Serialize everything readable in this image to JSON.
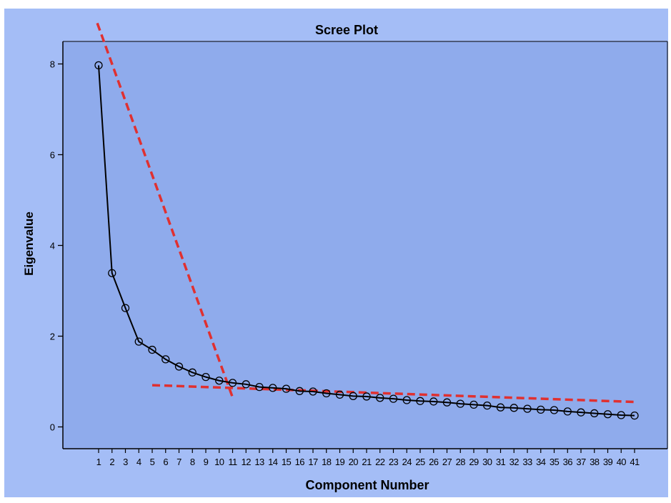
{
  "chart_data": {
    "type": "line",
    "title": "Scree Plot",
    "xlabel": "Component Number",
    "ylabel": "Eigenvalue",
    "x": [
      1,
      2,
      3,
      4,
      5,
      6,
      7,
      8,
      9,
      10,
      11,
      12,
      13,
      14,
      15,
      16,
      17,
      18,
      19,
      20,
      21,
      22,
      23,
      24,
      25,
      26,
      27,
      28,
      29,
      30,
      31,
      32,
      33,
      34,
      35,
      36,
      37,
      38,
      39,
      40,
      41
    ],
    "x_tick_labels": [
      "1",
      "2",
      "3",
      "4",
      "5",
      "6",
      "7",
      "8",
      "9",
      "10",
      "11",
      "12",
      "13",
      "14",
      "15",
      "16",
      "17",
      "18",
      "19",
      "20",
      "21",
      "22",
      "23",
      "24",
      "25",
      "26",
      "27",
      "28",
      "29",
      "30",
      "31",
      "32",
      "33",
      "34",
      "35",
      "36",
      "37",
      "38",
      "39",
      "40",
      "41"
    ],
    "y_ticks": [
      0,
      2,
      4,
      6,
      8
    ],
    "ylim": [
      -0.35,
      8.5
    ],
    "series": [
      {
        "values": [
          7.97,
          3.39,
          2.62,
          1.88,
          1.7,
          1.49,
          1.33,
          1.2,
          1.1,
          1.02,
          0.97,
          0.94,
          0.88,
          0.86,
          0.84,
          0.79,
          0.78,
          0.74,
          0.71,
          0.68,
          0.67,
          0.64,
          0.62,
          0.59,
          0.57,
          0.56,
          0.54,
          0.51,
          0.49,
          0.47,
          0.43,
          0.42,
          0.4,
          0.38,
          0.37,
          0.34,
          0.32,
          0.3,
          0.28,
          0.26,
          0.25
        ],
        "color": "#000000",
        "marker": "circle"
      }
    ],
    "reference_lines": [
      {
        "x": [
          0.9,
          11.0
        ],
        "y": [
          8.9,
          0.65
        ],
        "color": "#e03030",
        "style": "dashed"
      },
      {
        "x": [
          5.0,
          41.0
        ],
        "y": [
          0.92,
          0.55
        ],
        "color": "#e03030",
        "style": "dashed"
      }
    ],
    "colors": {
      "outer_background": "#a4bdf6",
      "plot_background": "#8fabec",
      "axis": "#000000"
    },
    "grid": false,
    "legend": "none"
  }
}
